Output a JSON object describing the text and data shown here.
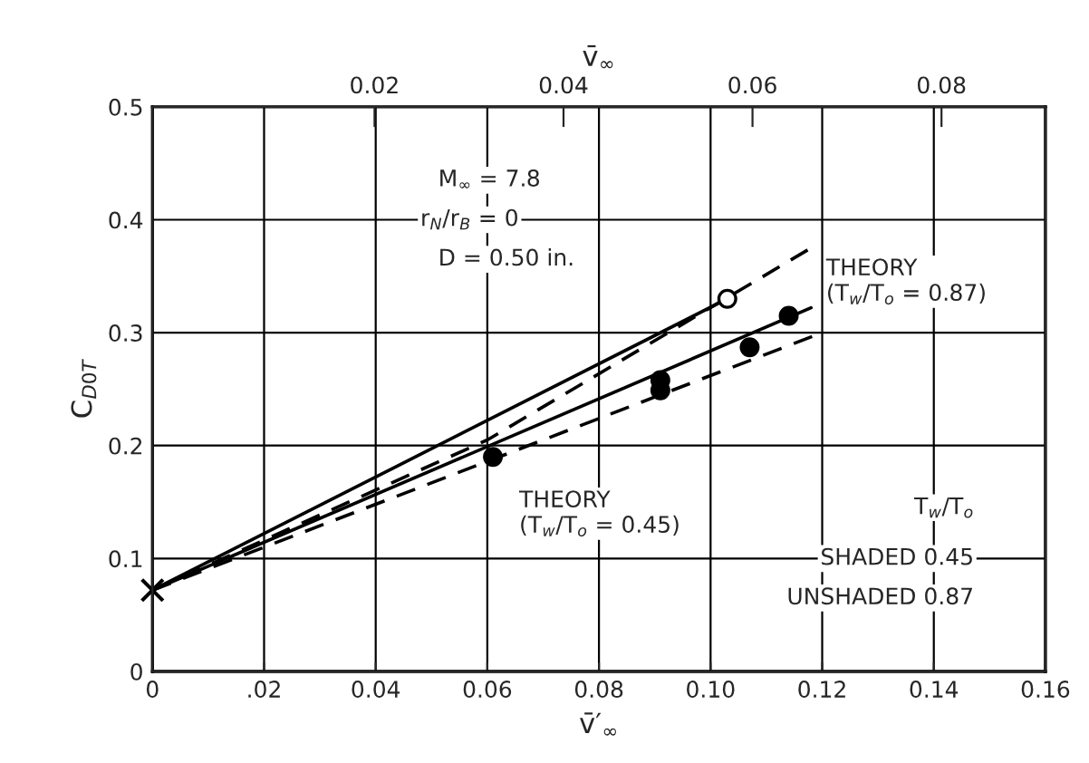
{
  "chart_data": {
    "type": "scatter",
    "xlabel": "v̄′$_{∞}$",
    "ylabel": "C$_{D0T}$",
    "x2label": "v̄$_{∞}$",
    "xlim": [
      0,
      0.16
    ],
    "xticks": [
      0,
      {
        "value": 0.02,
        "label": ".02"
      },
      0.04,
      0.06,
      0.08,
      {
        "value": 0.1,
        "label": "0.10"
      },
      0.12,
      0.14,
      0.16
    ],
    "ylim": [
      0,
      0.5
    ],
    "yticks": [
      0,
      0.1,
      0.2,
      0.3,
      0.4,
      0.5
    ],
    "x2lim": [
      -0.0035,
      0.091
    ],
    "x2ticks": [
      0.02,
      0.04,
      0.06,
      0.08
    ],
    "grid": true,
    "legend": false,
    "series": [
      {
        "type": "line",
        "line_style": "solid",
        "color": "#000000",
        "x": [
          0,
          0.103
        ],
        "values": [
          0.072,
          0.33
        ]
      },
      {
        "type": "line",
        "line_style": "solid",
        "color": "#000000",
        "x": [
          0,
          0.118
        ],
        "values": [
          0.072,
          0.322
        ]
      },
      {
        "type": "line",
        "line_style": "dashed",
        "color": "#000000",
        "x": [
          0,
          0.06,
          0.118
        ],
        "values": [
          0.072,
          0.205,
          0.375
        ]
      },
      {
        "type": "line",
        "line_style": "dashed",
        "color": "#000000",
        "x": [
          0,
          0.12
        ],
        "values": [
          0.072,
          0.3
        ]
      },
      {
        "marker": "circle",
        "color": "#000000",
        "x": [
          0.061,
          0.091,
          0.091,
          0.107,
          0.114
        ],
        "values": [
          0.19,
          0.258,
          0.249,
          0.287,
          0.315
        ]
      },
      {
        "marker": "circle",
        "color": "#ffffff",
        "x": [
          0.103
        ],
        "values": [
          0.33
        ]
      },
      {
        "marker": "cross",
        "color": "#000000",
        "x": [
          0
        ],
        "values": [
          0.072
        ]
      }
    ],
    "annotations": [
      "M$_{∞}$ = 7.8",
      "r$_{N}$/r$_{B}$ = 0",
      "D = 0.50 in.",
      {
        "text": "THEORY\n(T$_{w}$/T$_{o}$ = 0.87)",
        "x": 0.118,
        "y": 0.375
      },
      {
        "text": "THEORY\n(T$_{w}$/T$_{o}$ = 0.45)",
        "x": 0.063,
        "y": 0.183
      },
      "T$_{w}$/T$_{o}$",
      "SHADED 0.45",
      "UNSHADED 0.87"
    ]
  }
}
